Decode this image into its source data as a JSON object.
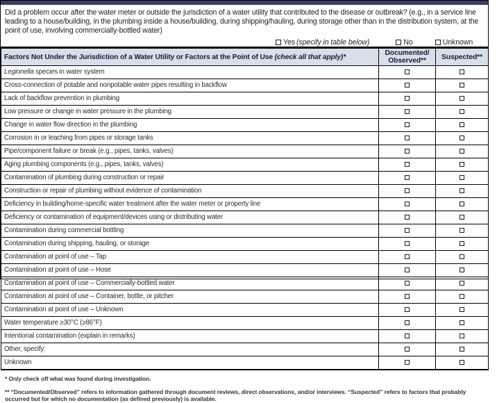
{
  "top_question": {
    "text": "Did a problem occur after the water meter or outside the jurisdiction of a water utility that contributed to the disease or outbreak? (e.g., in a service line leading to a house/building, in the plumbing inside a house/building, during shipping/hauling, during storage other than in the distribution system, at the point of use, involving commercially-bottled water)",
    "options": [
      {
        "label": "Yes",
        "note": "(specify in table below)"
      },
      {
        "label": "No",
        "note": ""
      },
      {
        "label": "Unknown",
        "note": ""
      }
    ]
  },
  "table": {
    "factors_header": "Factors Not Under the Jurisdiction of a Water Utility or Factors at the Point of Use ",
    "factors_header_note": "(check all that apply)*",
    "documented_header": "Documented/\nObserved**",
    "suspected_header": "Suspected**",
    "rows": [
      {
        "italic": "Legionella",
        "text": " species in water system"
      },
      {
        "text": "Cross-connection of potable and nonpotable water pipes resulting in backflow"
      },
      {
        "text": "Lack of backflow prevention in plumbing"
      },
      {
        "text": "Low pressure or change in water pressure in the plumbing"
      },
      {
        "text": "Change in water flow direction in the plumbing"
      },
      {
        "text": "Corrosion in or leaching from pipes or storage tanks"
      },
      {
        "text": "Pipe/component failure or break (e.g., pipes, tanks, valves)"
      },
      {
        "text": "Aging plumbing components (e.g., pipes, tanks, valves)"
      },
      {
        "text": "Contamination of plumbing during construction or repair"
      },
      {
        "text": "Construction or repair of plumbing without evidence of contamination"
      },
      {
        "text": "Deficiency in building/home-specific water treatment after the water meter or property line"
      },
      {
        "text": "Deficiency or contamination of equipment/devices using or distributing water"
      },
      {
        "text": "Contamination during commercial bottling"
      },
      {
        "text": "Contamination during shipping, hauling, or storage"
      },
      {
        "text": "Contamination at point of use – Tap"
      },
      {
        "text": "Contamination at point of use – Hose"
      },
      {
        "text": "Contamination at point of use – Commercially-bottled water"
      },
      {
        "text": "Contamination at point of use – Container, bottle, or pitcher"
      },
      {
        "text": "Contamination at point of use – Unknown"
      },
      {
        "text": "Water temperature ≥30°C (≥86°F)"
      },
      {
        "text": "Intentional contamination (explain in remarks)"
      },
      {
        "text": "Other, specify:"
      },
      {
        "text": "Unknown"
      }
    ]
  },
  "footnotes": [
    "* Only check off what was found during investigation.",
    "** “Documented/Observed” refers to information gathered through document reviews, direct observations, and/or interviews. “Suspected” refers to factors that probably occurred but for which no documentation (as defined previously) is available."
  ],
  "colors": {
    "top_bar": "#3f3c63",
    "header_bg": "#d8dfe9"
  }
}
